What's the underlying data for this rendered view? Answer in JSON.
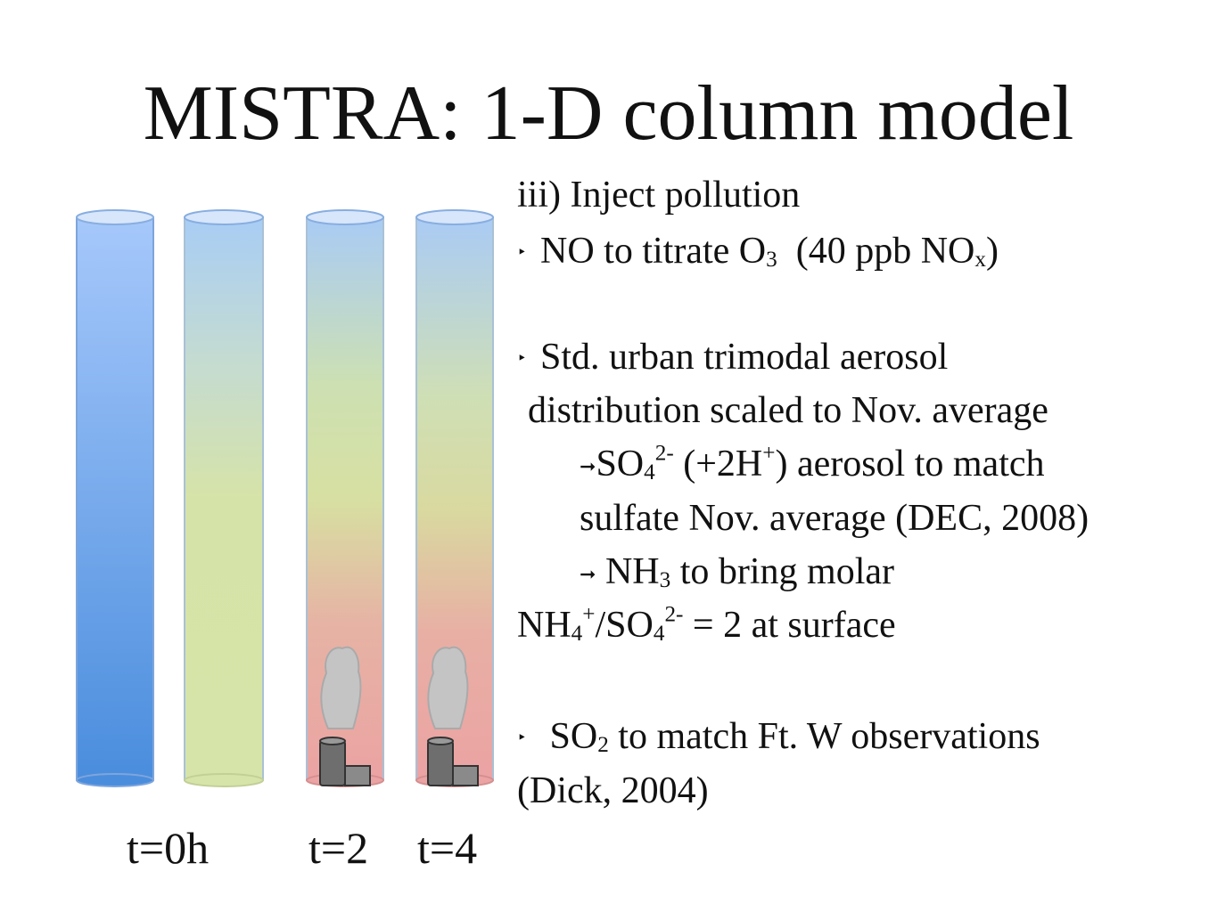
{
  "title": "MISTRA: 1-D column model",
  "columns": [
    {
      "label": "t=0h",
      "has_smokestack": false
    },
    {
      "label": "",
      "has_smokestack": false
    },
    {
      "label": "t=2",
      "has_smokestack": true
    },
    {
      "label": "t=4",
      "has_smokestack": true
    }
  ],
  "colors": {
    "clean_top": "#a6c8fb",
    "clean_bottom": "#4a8ddd",
    "yellow": "#d7e4a9",
    "polluted_red": "#eba3a3",
    "stack": "#6e6e6e",
    "smoke": "#c4c4c4"
  },
  "text": {
    "step": "iii) Inject pollution",
    "b1_pre": "NO to titrate O",
    "b1_sub": "3",
    "b1_mid": "(40 ppb NO",
    "b1_sub2": "x",
    "b1_post": ")",
    "b2_l1": "Std. urban trimodal aerosol",
    "b2_l2": "distribution scaled to Nov. average",
    "s1_a": "SO",
    "s1_sub": "4",
    "s1_sup": "2-",
    "s1_b": " (+2H",
    "s1_sup2": "+",
    "s1_c": ") aerosol to match",
    "s1_l2": "sulfate Nov. average (DEC, 2008)",
    "s2_a": "NH",
    "s2_sub": "3",
    "s2_b": " to bring molar",
    "s2_l2_a": "NH",
    "s2_l2_sub": "4",
    "s2_l2_sup": "+",
    "s2_l2_b": "/SO",
    "s2_l2_sub2": "4",
    "s2_l2_sup2": "2-",
    "s2_l2_c": " = 2 at surface",
    "b3_a": "SO",
    "b3_sub": "2",
    "b3_b": " to match Ft. W observations",
    "b3_l2": "(Dick, 2004)"
  },
  "icons": {
    "bullet": "triangle-bullet-icon",
    "arrow": "right-arrow-icon"
  }
}
